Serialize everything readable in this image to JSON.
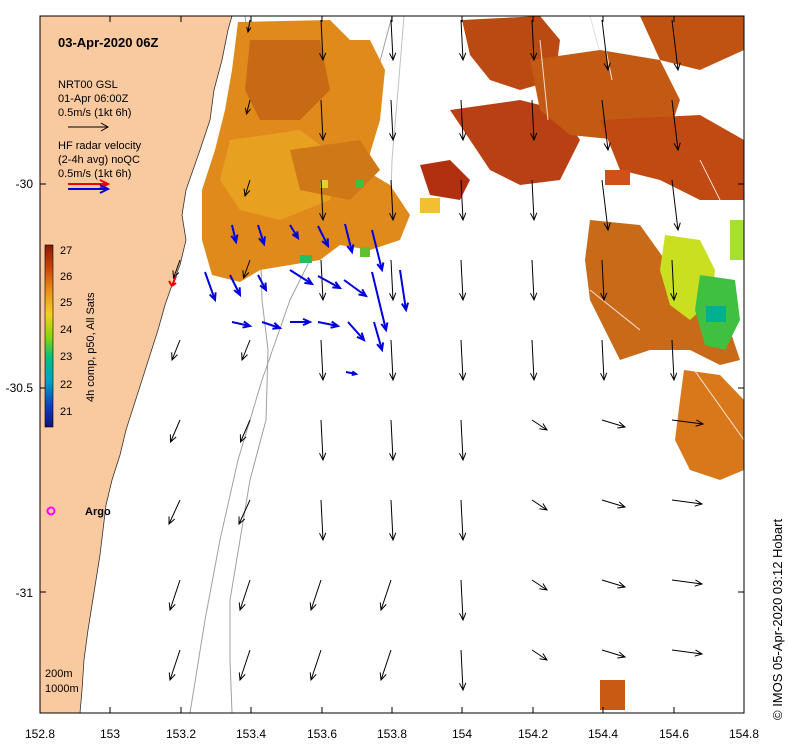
{
  "title": "03-Apr-2020 06Z",
  "legend_model": {
    "line1": "NRT00 GSL",
    "line2": "01-Apr 06:00Z",
    "line3": "0.5m/s (1kt 6h)"
  },
  "legend_radar": {
    "line1": "HF radar velocity",
    "line2": "(2-4h avg) noQC",
    "line3": "0.5m/s (1kt 6h)"
  },
  "colorbar": {
    "label": "4h comp, p50, All Sats",
    "ticks": [
      "27",
      "26",
      "25",
      "24",
      "23",
      "22",
      "21"
    ]
  },
  "x_ticks": [
    "152.8",
    "153",
    "153.2",
    "153.4",
    "153.6",
    "153.8",
    "154",
    "154.2",
    "154.4",
    "154.6",
    "154.8"
  ],
  "y_ticks": [
    "-30",
    "-30.5",
    "-31"
  ],
  "argo_label": "Argo",
  "contours": [
    "200m",
    "1000m"
  ],
  "credit": "© IMOS 05-Apr-2020 03:12 Hobart",
  "colors": {
    "land": "#f9c9a0",
    "model_arrow": "#000000",
    "radar_arrow": "#0000dd",
    "argo": "#ff00ff",
    "sst_warm": "#c8560c",
    "sst_mid": "#e8901a"
  }
}
